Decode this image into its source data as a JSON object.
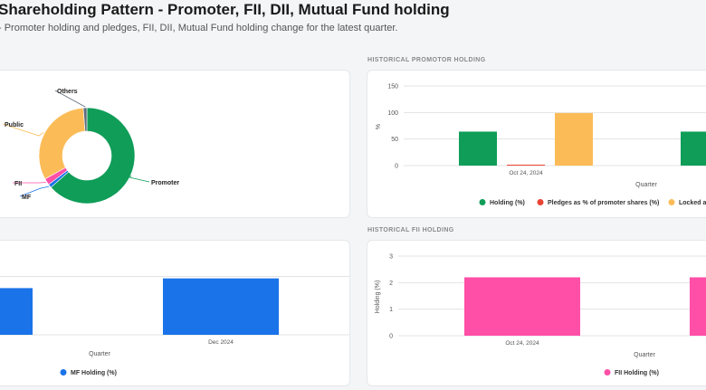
{
  "page": {
    "title": "Shareholding Pattern - Promoter, FII, DII, Mutual Fund holding",
    "subtitle": "- Promoter holding and pledges, FII, DII, Mutual Fund holding change for the latest quarter.",
    "section_promoter": "HISTORICAL PROMOTOR HOLDING",
    "section_fii": "HISTORICAL FII HOLDING"
  },
  "chart_data": [
    {
      "type": "pie",
      "labels": [
        "Promoter",
        "MF",
        "FII",
        "Public",
        "Others"
      ],
      "values": [
        63.5,
        1.2,
        2.2,
        31.9,
        1.2
      ],
      "colors": [
        "#0f9d58",
        "#1a73e8",
        "#ff4fa7",
        "#fbbc58",
        "#5f6d7e"
      ]
    },
    {
      "type": "bar",
      "categories": [
        "Oct 24, 2024",
        ""
      ],
      "series": [
        {
          "name": "Holding (%)",
          "values": [
            64,
            64
          ],
          "color": "#0f9d58"
        },
        {
          "name": "Pledges as % of promoter shares (%)",
          "values": [
            0,
            0
          ],
          "color": "#ea4335"
        },
        {
          "name": "Locked as",
          "values": [
            99,
            99
          ],
          "color": "#fbbc58"
        }
      ],
      "xlabel": "Quarter",
      "ylabel": "%",
      "ylim": [
        0,
        150
      ],
      "yticks": [
        "150",
        "100",
        "50",
        "0"
      ]
    },
    {
      "type": "bar",
      "categories": [
        "",
        "Dec 2024"
      ],
      "series": [
        {
          "name": "MF Holding (%)",
          "values": [
            1.2,
            1.45
          ],
          "color": "#1a73e8"
        }
      ],
      "xlabel": "Quarter",
      "ylim": [
        0,
        2
      ]
    },
    {
      "type": "bar",
      "categories": [
        "Oct 24, 2024",
        ""
      ],
      "series": [
        {
          "name": "FII Holding (%)",
          "values": [
            2.2,
            2.2
          ],
          "color": "#ff4fa7"
        }
      ],
      "xlabel": "Quarter",
      "ylabel": "Holding (%)",
      "ylim": [
        0,
        3
      ],
      "yticks": [
        "3",
        "2",
        "1",
        "0"
      ]
    }
  ]
}
